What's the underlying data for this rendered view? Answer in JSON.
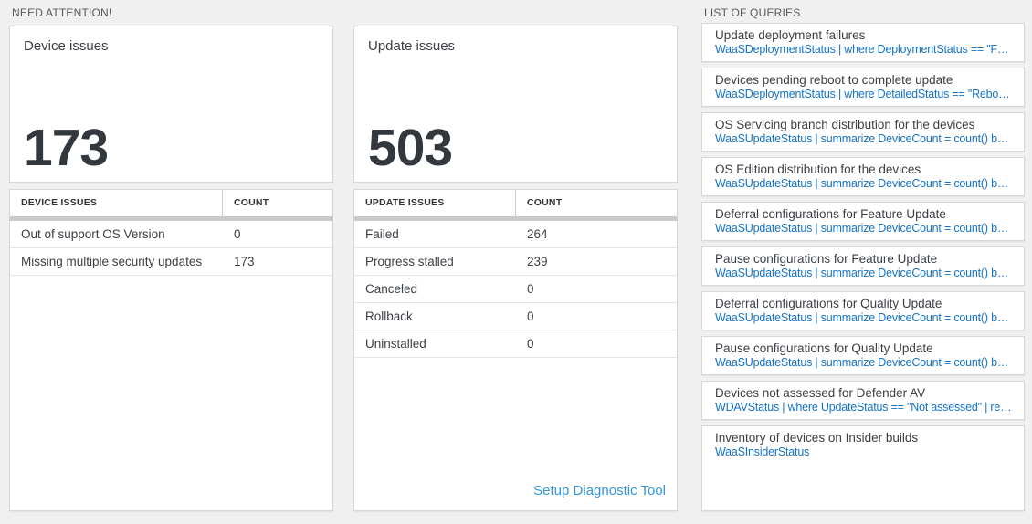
{
  "need_attention": {
    "label": "NEED ATTENTION!",
    "device_card": {
      "title": "Device issues",
      "count": "173"
    },
    "device_table": {
      "col_issue": "DEVICE ISSUES",
      "col_count": "COUNT",
      "rows": [
        {
          "label": "Out of support OS Version",
          "count": "0"
        },
        {
          "label": "Missing multiple security updates",
          "count": "173"
        }
      ]
    },
    "update_card": {
      "title": "Update issues",
      "count": "503"
    },
    "update_table": {
      "col_issue": "UPDATE ISSUES",
      "col_count": "COUNT",
      "rows": [
        {
          "label": "Failed",
          "count": "264"
        },
        {
          "label": "Progress stalled",
          "count": "239"
        },
        {
          "label": "Canceled",
          "count": "0"
        },
        {
          "label": "Rollback",
          "count": "0"
        },
        {
          "label": "Uninstalled",
          "count": "0"
        }
      ],
      "footer_link": "Setup Diagnostic Tool"
    }
  },
  "queries": {
    "label": "LIST OF QUERIES",
    "items": [
      {
        "title": "Update deployment failures",
        "query": "WaaSDeploymentStatus | where DeploymentStatus == \"Failed\" |..."
      },
      {
        "title": "Devices pending reboot to complete update",
        "query": "WaaSDeploymentStatus | where DetailedStatus == \"Reboot pend..."
      },
      {
        "title": "OS Servicing branch distribution for the devices",
        "query": "WaaSUpdateStatus | summarize DeviceCount = count() by OSSer..."
      },
      {
        "title": "OS Edition distribution for the devices",
        "query": "WaaSUpdateStatus | summarize DeviceCount = count() by OSEdit..."
      },
      {
        "title": "Deferral configurations for Feature Update",
        "query": "WaaSUpdateStatus | summarize DeviceCount = count() by Featur..."
      },
      {
        "title": "Pause configurations for Feature Update",
        "query": "WaaSUpdateStatus | summarize DeviceCount = count() by Featur..."
      },
      {
        "title": "Deferral configurations for Quality Update",
        "query": "WaaSUpdateStatus | summarize DeviceCount = count() by Qualit..."
      },
      {
        "title": "Pause configurations for Quality Update",
        "query": "WaaSUpdateStatus | summarize DeviceCount = count() by Qualit..."
      },
      {
        "title": "Devices not assessed for Defender AV",
        "query": "WDAVStatus | where UpdateStatus == \"Not assessed\" | render ta..."
      },
      {
        "title": "Inventory of devices on Insider builds",
        "query": "WaaSInsiderStatus"
      }
    ]
  },
  "colors": {
    "page_background": "#f0f0f0",
    "query_link_blue": "#1573c6",
    "action_link_blue": "#3296d9",
    "big_number_color": "#32383e",
    "header_divider_gray": "#c8cbcd"
  }
}
